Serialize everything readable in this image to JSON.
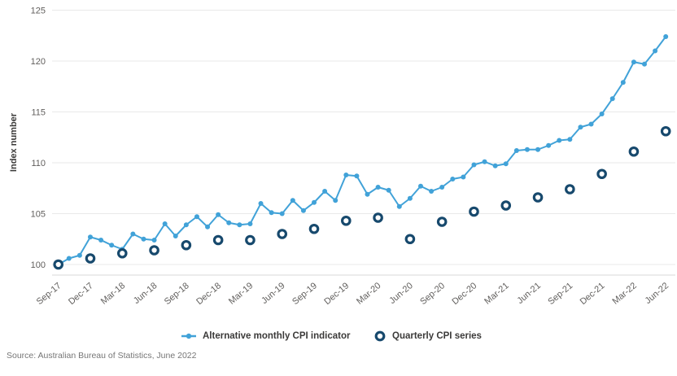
{
  "footer": {
    "source": "Source: Australian Bureau of Statistics, June 2022"
  },
  "colors": {
    "monthly_line": "#41a2d8",
    "quarterly_ring": "#17496d",
    "gridline": "#e9e9e9",
    "axis_line": "#d9d9d9",
    "tick_label": "#605e5c",
    "axis_title": "#3b3a39",
    "legend_text": "#3b3a39",
    "source_text": "#767676"
  },
  "chart_data": {
    "type": "line",
    "title": "",
    "xlabel": "",
    "ylabel": "Index number",
    "ylim": [
      100,
      125
    ],
    "y_ticks": [
      100,
      105,
      110,
      115,
      120,
      125
    ],
    "grid": "horizontal",
    "legend_position": "bottom",
    "x_tick_labels": [
      "Sep-17",
      "Dec-17",
      "Mar-18",
      "Jun-18",
      "Sep-18",
      "Dec-18",
      "Mar-19",
      "Jun-19",
      "Sep-19",
      "Dec-19",
      "Mar-20",
      "Jun-20",
      "Sep-20",
      "Dec-20",
      "Mar-21",
      "Jun-21",
      "Sep-21",
      "Dec-21",
      "Mar-22",
      "Jun-22"
    ],
    "months": [
      "Sep-17",
      "Oct-17",
      "Nov-17",
      "Dec-17",
      "Jan-18",
      "Feb-18",
      "Mar-18",
      "Apr-18",
      "May-18",
      "Jun-18",
      "Jul-18",
      "Aug-18",
      "Sep-18",
      "Oct-18",
      "Nov-18",
      "Dec-18",
      "Jan-19",
      "Feb-19",
      "Mar-19",
      "Apr-19",
      "May-19",
      "Jun-19",
      "Jul-19",
      "Aug-19",
      "Sep-19",
      "Oct-19",
      "Nov-19",
      "Dec-19",
      "Jan-20",
      "Feb-20",
      "Mar-20",
      "Apr-20",
      "May-20",
      "Jun-20",
      "Jul-20",
      "Aug-20",
      "Sep-20",
      "Oct-20",
      "Nov-20",
      "Dec-20",
      "Jan-21",
      "Feb-21",
      "Mar-21",
      "Apr-21",
      "May-21",
      "Jun-21",
      "Jul-21",
      "Aug-21",
      "Sep-21",
      "Oct-21",
      "Nov-21",
      "Dec-21",
      "Jan-22",
      "Feb-22",
      "Mar-22",
      "Apr-22",
      "May-22",
      "Jun-22"
    ],
    "series": [
      {
        "name": "Alternative monthly CPI indicator",
        "marker": "line-dot",
        "color": "#41a2d8",
        "x": "months",
        "values": [
          100.0,
          100.6,
          100.9,
          102.7,
          102.4,
          101.9,
          101.5,
          103.0,
          102.5,
          102.4,
          104.0,
          102.8,
          103.9,
          104.7,
          103.7,
          104.9,
          104.1,
          103.9,
          104.0,
          106.0,
          105.1,
          105.0,
          106.3,
          105.3,
          106.1,
          107.2,
          106.3,
          108.8,
          108.7,
          106.9,
          107.6,
          107.3,
          105.7,
          106.5,
          107.7,
          107.2,
          107.6,
          108.4,
          108.6,
          109.8,
          110.1,
          109.7,
          109.9,
          111.2,
          111.3,
          111.3,
          111.7,
          112.2,
          112.3,
          113.5,
          113.8,
          114.8,
          116.3,
          117.9,
          119.9,
          119.7,
          121.0,
          122.4
        ]
      },
      {
        "name": "Quarterly CPI series",
        "marker": "open-circle",
        "color": "#17496d",
        "x": "x_tick_labels",
        "values": [
          100.0,
          100.6,
          101.1,
          101.4,
          101.9,
          102.4,
          102.4,
          103.0,
          103.5,
          104.3,
          104.6,
          102.5,
          104.2,
          105.2,
          105.8,
          106.6,
          107.4,
          108.9,
          111.1,
          113.1
        ]
      }
    ]
  }
}
